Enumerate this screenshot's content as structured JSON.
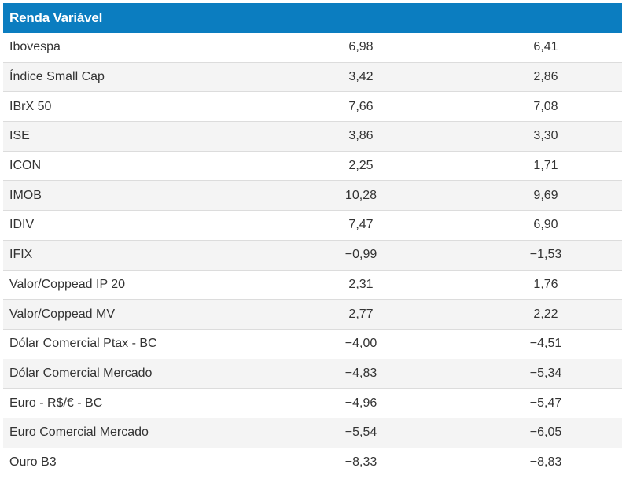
{
  "table": {
    "header": "Renda Variável",
    "rows": [
      {
        "name": "Ibovespa",
        "v1": "6,98",
        "v2": "6,41"
      },
      {
        "name": "Índice Small Cap",
        "v1": "3,42",
        "v2": "2,86"
      },
      {
        "name": "IBrX 50",
        "v1": "7,66",
        "v2": "7,08"
      },
      {
        "name": "ISE",
        "v1": "3,86",
        "v2": "3,30"
      },
      {
        "name": "ICON",
        "v1": "2,25",
        "v2": "1,71"
      },
      {
        "name": "IMOB",
        "v1": "10,28",
        "v2": "9,69"
      },
      {
        "name": "IDIV",
        "v1": "7,47",
        "v2": "6,90"
      },
      {
        "name": "IFIX",
        "v1": "−0,99",
        "v2": "−1,53"
      },
      {
        "name": "Valor/Coppead IP 20",
        "v1": "2,31",
        "v2": "1,76"
      },
      {
        "name": "Valor/Coppead MV",
        "v1": "2,77",
        "v2": "2,22"
      },
      {
        "name": "Dólar Comercial Ptax - BC",
        "v1": "−4,00",
        "v2": "−4,51"
      },
      {
        "name": "Dólar Comercial Mercado",
        "v1": "−4,83",
        "v2": "−5,34"
      },
      {
        "name": "Euro - R$/€ - BC",
        "v1": "−4,96",
        "v2": "−5,47"
      },
      {
        "name": "Euro Comercial Mercado",
        "v1": "−5,54",
        "v2": "−6,05"
      },
      {
        "name": "Ouro B3",
        "v1": "−8,33",
        "v2": "−8,83"
      }
    ]
  }
}
